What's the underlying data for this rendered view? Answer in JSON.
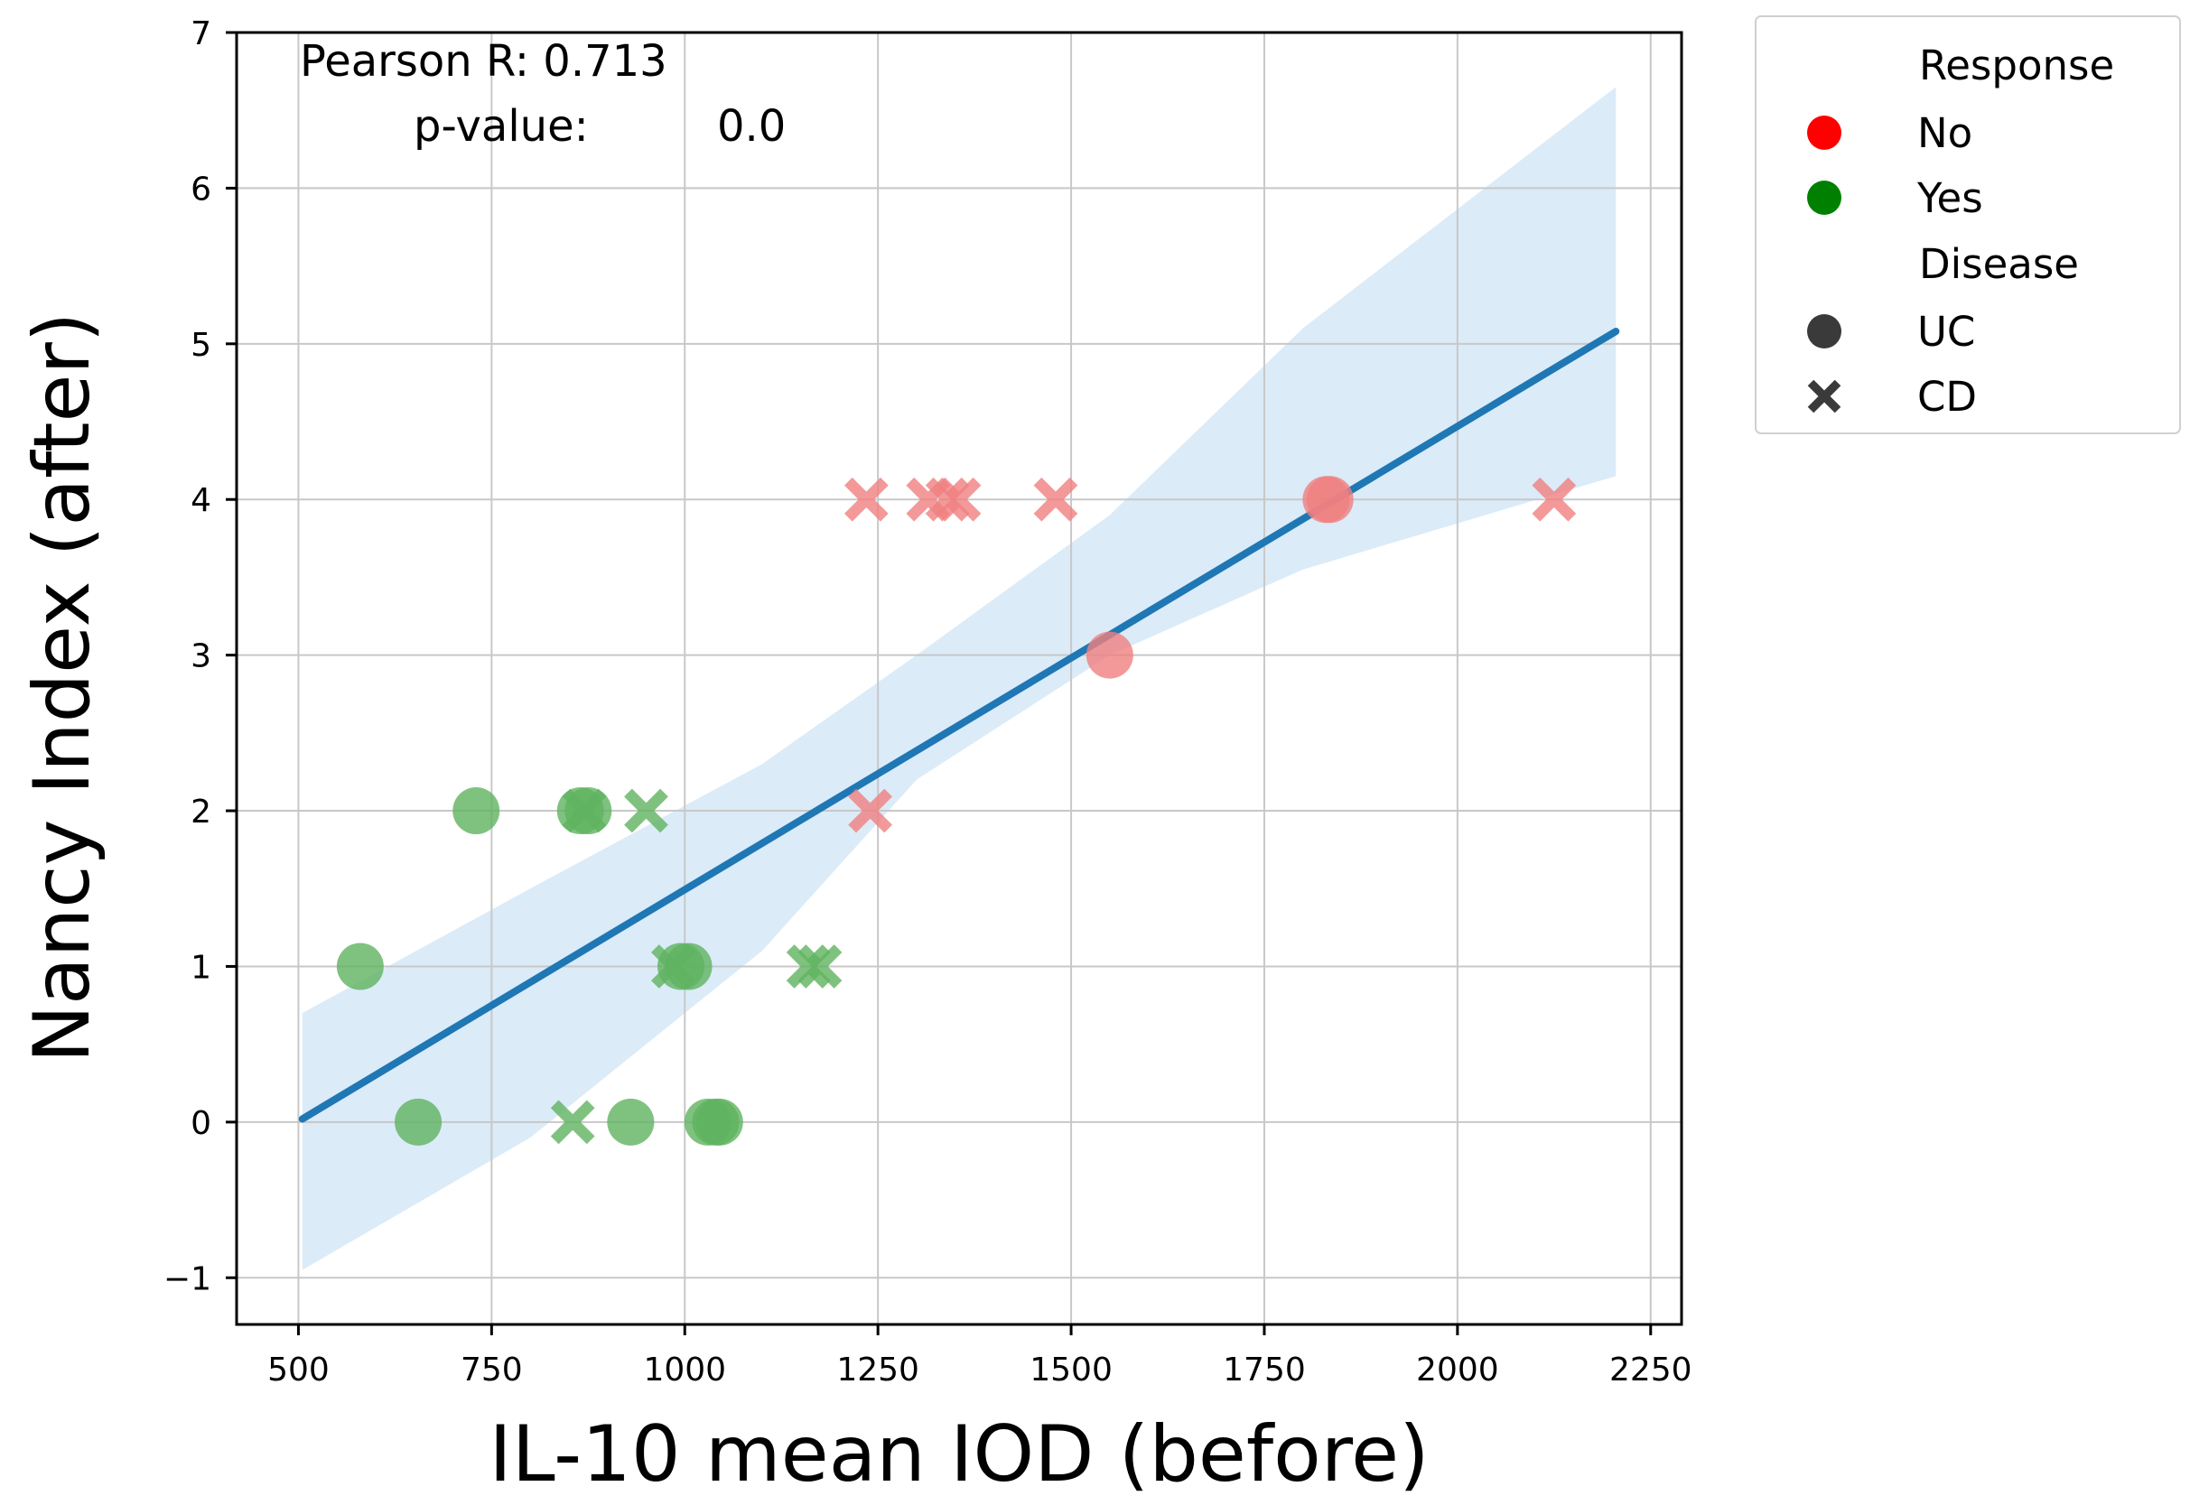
{
  "chart_data": {
    "type": "scatter",
    "xlabel": "IL-10 mean IOD (before)",
    "ylabel": "Nancy Index (after)",
    "xlim": [
      420,
      2290
    ],
    "ylim": [
      -1.3,
      7.0
    ],
    "xticks": [
      500,
      750,
      1000,
      1250,
      1500,
      1750,
      2000,
      2250
    ],
    "yticks": [
      -1,
      0,
      1,
      2,
      3,
      4,
      5,
      6,
      7
    ],
    "xtick_labels": [
      "500",
      "750",
      "1000",
      "1250",
      "1500",
      "1750",
      "2000",
      "2250"
    ],
    "ytick_labels": [
      "−1",
      "0",
      "1",
      "2",
      "3",
      "4",
      "5",
      "6",
      "7"
    ],
    "grid": true,
    "annotation": {
      "line1": "Pearson R: 0.713",
      "line2_label": "p-value:",
      "line2_value": "0.0"
    },
    "colors": {
      "No": "#f08080",
      "Yes": "#5fb35f",
      "fit": "#1f77b4",
      "band": "#cfe4f6"
    },
    "points": [
      {
        "x": 1235,
        "y": 4,
        "response": "No",
        "disease": "CD"
      },
      {
        "x": 1315,
        "y": 4,
        "response": "No",
        "disease": "CD"
      },
      {
        "x": 1340,
        "y": 4,
        "response": "No",
        "disease": "CD"
      },
      {
        "x": 1355,
        "y": 4,
        "response": "No",
        "disease": "CD"
      },
      {
        "x": 1480,
        "y": 4,
        "response": "No",
        "disease": "CD"
      },
      {
        "x": 1830,
        "y": 4,
        "response": "No",
        "disease": "UC"
      },
      {
        "x": 1835,
        "y": 4,
        "response": "No",
        "disease": "UC"
      },
      {
        "x": 2125,
        "y": 4,
        "response": "No",
        "disease": "CD"
      },
      {
        "x": 1550,
        "y": 3,
        "response": "No",
        "disease": "UC"
      },
      {
        "x": 1240,
        "y": 2,
        "response": "No",
        "disease": "CD"
      },
      {
        "x": 730,
        "y": 2,
        "response": "Yes",
        "disease": "UC"
      },
      {
        "x": 865,
        "y": 2,
        "response": "Yes",
        "disease": "UC"
      },
      {
        "x": 870,
        "y": 2,
        "response": "Yes",
        "disease": "CD"
      },
      {
        "x": 875,
        "y": 2,
        "response": "Yes",
        "disease": "UC"
      },
      {
        "x": 950,
        "y": 2,
        "response": "Yes",
        "disease": "CD"
      },
      {
        "x": 580,
        "y": 1,
        "response": "Yes",
        "disease": "UC"
      },
      {
        "x": 985,
        "y": 1,
        "response": "Yes",
        "disease": "CD"
      },
      {
        "x": 995,
        "y": 1,
        "response": "Yes",
        "disease": "UC"
      },
      {
        "x": 1005,
        "y": 1,
        "response": "Yes",
        "disease": "UC"
      },
      {
        "x": 1160,
        "y": 1,
        "response": "Yes",
        "disease": "CD"
      },
      {
        "x": 1175,
        "y": 1,
        "response": "Yes",
        "disease": "CD"
      },
      {
        "x": 655,
        "y": 0,
        "response": "Yes",
        "disease": "UC"
      },
      {
        "x": 855,
        "y": 0,
        "response": "Yes",
        "disease": "CD"
      },
      {
        "x": 930,
        "y": 0,
        "response": "Yes",
        "disease": "UC"
      },
      {
        "x": 1030,
        "y": 0,
        "response": "Yes",
        "disease": "UC"
      },
      {
        "x": 1040,
        "y": 0,
        "response": "Yes",
        "disease": "UC"
      },
      {
        "x": 1045,
        "y": 0,
        "response": "Yes",
        "disease": "UC"
      }
    ],
    "fit_line": {
      "x": [
        505,
        2205
      ],
      "y": [
        0.02,
        5.08
      ]
    },
    "confidence_band": {
      "x": [
        505,
        800,
        1100,
        1300,
        1550,
        1800,
        2205
      ],
      "upper": [
        0.7,
        1.5,
        2.3,
        3.0,
        3.9,
        5.1,
        6.65
      ],
      "lower": [
        -0.95,
        -0.1,
        1.1,
        2.2,
        3.0,
        3.55,
        4.15
      ]
    },
    "legend": {
      "placement": "outside-right",
      "response_title": "Response",
      "response_items": [
        {
          "label": "No",
          "color": "#ff0000",
          "marker": "circle"
        },
        {
          "label": "Yes",
          "color": "#008000",
          "marker": "circle"
        }
      ],
      "disease_title": "Disease",
      "disease_items": [
        {
          "label": "UC",
          "color": "#3a3a3a",
          "marker": "circle"
        },
        {
          "label": "CD",
          "color": "#3a3a3a",
          "marker": "x"
        }
      ]
    }
  }
}
